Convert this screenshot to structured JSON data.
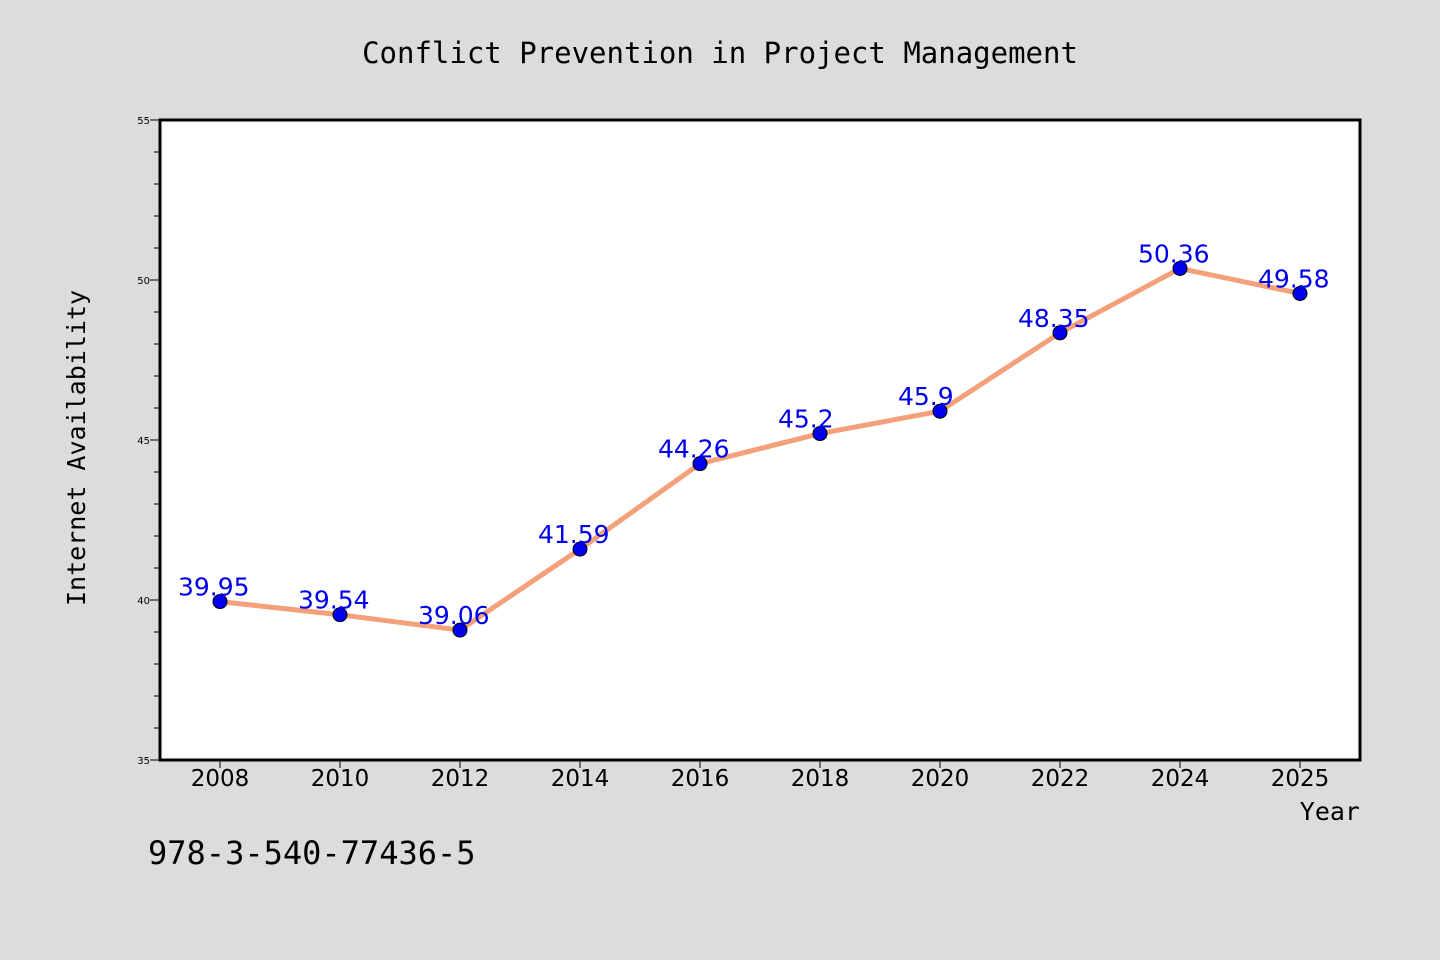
{
  "chart_data": {
    "type": "line",
    "title": "Conflict Prevention in Project Management",
    "xlabel": "Year",
    "ylabel": "Internet Availability",
    "categories": [
      "2008",
      "2010",
      "2012",
      "2014",
      "2016",
      "2018",
      "2020",
      "2022",
      "2024",
      "2025"
    ],
    "series": [
      {
        "values": [
          39.95,
          39.54,
          39.06,
          41.59,
          44.26,
          45.2,
          45.9,
          48.35,
          50.36,
          49.58
        ],
        "labels": [
          "39.95",
          "39.54",
          "39.06",
          "41.59",
          "44.26",
          "45.2",
          "45.9",
          "48.35",
          "50.36",
          "49.58"
        ],
        "line_color": "#f4a07a",
        "marker_color": "#0000ee",
        "label_color": "#0000ee"
      }
    ],
    "ylim": [
      35,
      55
    ],
    "yticks": [
      "35",
      "40",
      "45",
      "50",
      "55"
    ],
    "grid": false,
    "legend": "none"
  },
  "annotation": "978-3-540-77436-5",
  "colors": {
    "background": "#dcdcdc",
    "plot_background": "#ffffff",
    "axis": "#000000",
    "text": "#000000"
  }
}
